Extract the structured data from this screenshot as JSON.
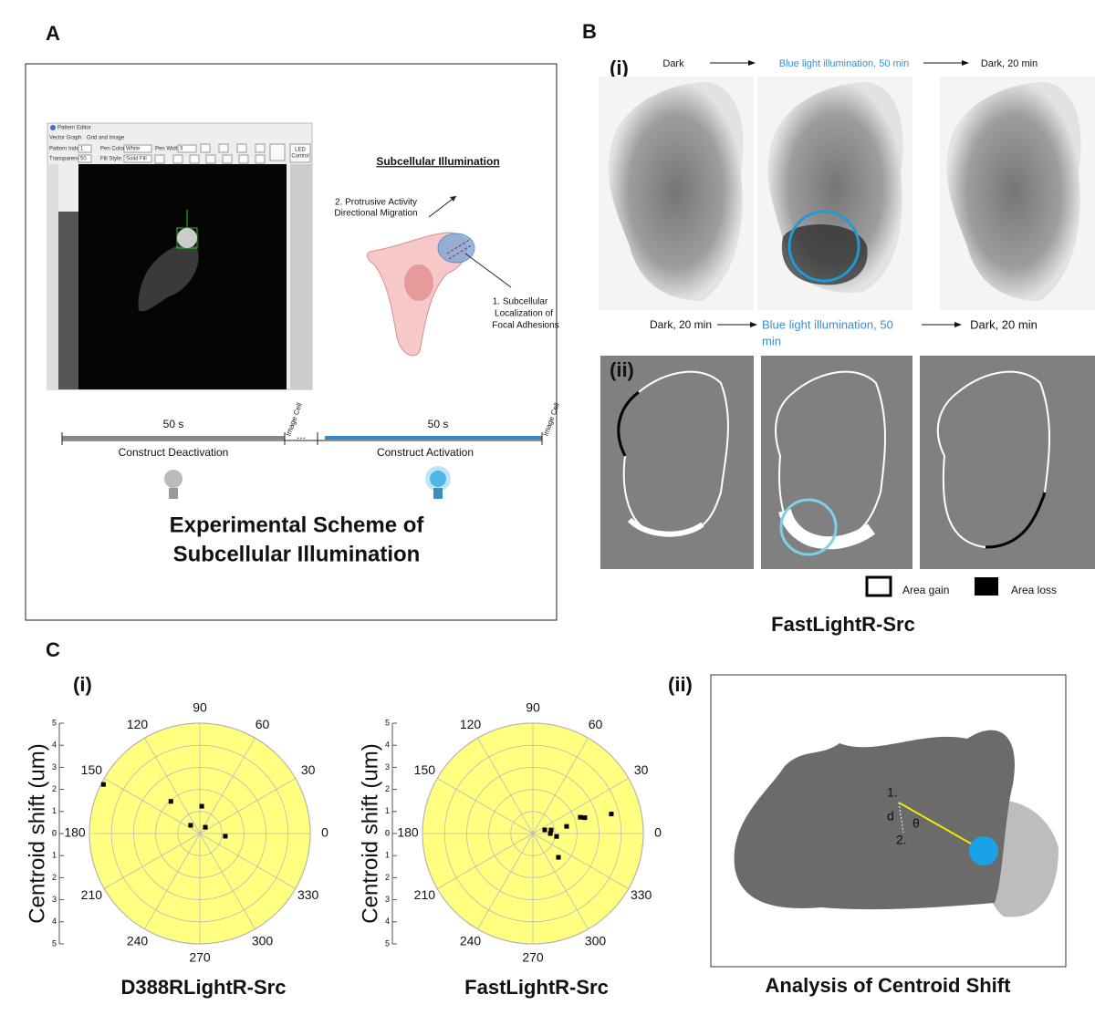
{
  "panel_labels": [
    "A",
    "B",
    "C"
  ],
  "panel_a": {
    "editor": {
      "window_title": "Pattern Editor",
      "tabs": [
        "Vector Graph",
        "Grid and Image"
      ],
      "fields": [
        "Pattern Index:",
        "1",
        "Pen Color:",
        "White",
        "Pen Width:",
        "3",
        "Transparency:",
        "50",
        "Fill Style:",
        "Solid Fill"
      ],
      "button": [
        "LED",
        "Control"
      ]
    },
    "diagram": {
      "title": "Subcellular Illumination",
      "label_2": [
        "2. Protrusive Activity",
        "Directional Migration"
      ],
      "label_1": [
        "1.  Subcellular",
        "Localization of",
        "Focal Adhesions"
      ]
    },
    "timeline": {
      "deactivation_duration": "50 s",
      "activation_duration": "50 s",
      "image_label": "Image Cell",
      "ellipsis": "...",
      "deactivation": "Construct Deactivation",
      "activation": "Construct Activation"
    },
    "title": [
      "Experimental Scheme of",
      "Subcellular Illumination"
    ]
  },
  "panel_b": {
    "row_i_label": "(i)",
    "row_i_steps": [
      "Dark",
      "Blue light illumination, 50 min",
      "Dark, 20 min"
    ],
    "row_ii_steps": [
      "Dark, 20 min",
      "Blue light illumination, 50",
      "min",
      "Dark, 20 min"
    ],
    "row_ii_label": "(ii)",
    "legend": [
      "Area gain",
      "Area loss"
    ],
    "title": "FastLightR-Src"
  },
  "panel_c": {
    "row_i_label": "(i)",
    "row_ii_label": "(ii)",
    "analysis": {
      "point_1": "1.",
      "point_2": "2.",
      "distance": "d",
      "angle": "θ",
      "title": "Analysis of Centroid Shift"
    }
  },
  "chart_data": [
    {
      "type": "polar-scatter",
      "title": "D388RLightR-Src",
      "r_label": "Centroid shift (um)",
      "rlim": [
        0,
        5
      ],
      "rticks": [
        0,
        1,
        2,
        3,
        4,
        5
      ],
      "thetaticks": [
        0,
        30,
        60,
        90,
        120,
        150,
        180,
        210,
        240,
        270,
        300,
        330
      ],
      "background": "#ffff80",
      "color": "#000000",
      "r": [
        4.9,
        1.96,
        1.24,
        0.56,
        0.38,
        1.16
      ],
      "theta": [
        153,
        132,
        86,
        138,
        49,
        354
      ]
    },
    {
      "type": "polar-scatter",
      "title": "FastLightR-Src",
      "r_label": "Centroid shift (um)",
      "rlim": [
        0,
        5
      ],
      "rticks": [
        0,
        1,
        2,
        3,
        4,
        5
      ],
      "thetaticks": [
        0,
        30,
        60,
        90,
        120,
        150,
        180,
        210,
        240,
        270,
        300,
        330
      ],
      "background": "#ffff80",
      "color": "#000000",
      "r": [
        3.66,
        2.46,
        2.27,
        1.56,
        0.84,
        0.56,
        0.79,
        1.08,
        1.58
      ],
      "theta": [
        14,
        17,
        19,
        12,
        11,
        17,
        0,
        353,
        317
      ]
    }
  ]
}
